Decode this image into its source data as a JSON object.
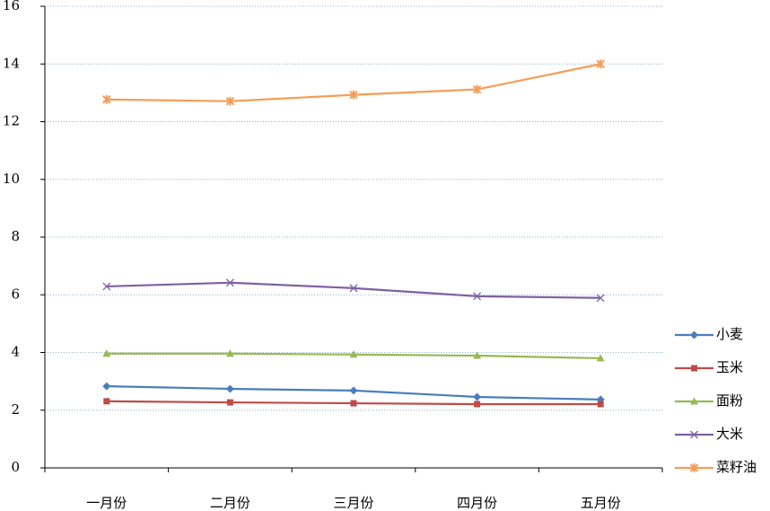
{
  "chart_data": {
    "type": "line",
    "categories": [
      "一月份",
      "二月份",
      "三月份",
      "四月份",
      "五月份"
    ],
    "series": [
      {
        "name": "小麦",
        "color": "#4a7ebb",
        "marker": "diamond",
        "values": [
          2.83,
          2.74,
          2.68,
          2.46,
          2.37
        ]
      },
      {
        "name": "玉米",
        "color": "#be4b48",
        "marker": "square",
        "values": [
          2.31,
          2.27,
          2.24,
          2.21,
          2.21
        ]
      },
      {
        "name": "面粉",
        "color": "#98b954",
        "marker": "triangle",
        "values": [
          3.96,
          3.96,
          3.93,
          3.89,
          3.8
        ]
      },
      {
        "name": "大米",
        "color": "#7d60a0",
        "marker": "cross",
        "values": [
          6.29,
          6.42,
          6.23,
          5.95,
          5.89
        ]
      },
      {
        "name": "菜籽油",
        "color": "#f59d56",
        "marker": "star",
        "values": [
          12.77,
          12.71,
          12.93,
          13.12,
          14.0
        ]
      }
    ],
    "ylim": [
      0,
      16
    ],
    "yticks": [
      0,
      2,
      4,
      6,
      8,
      10,
      12,
      14,
      16
    ],
    "grid": true,
    "legend": "right"
  }
}
